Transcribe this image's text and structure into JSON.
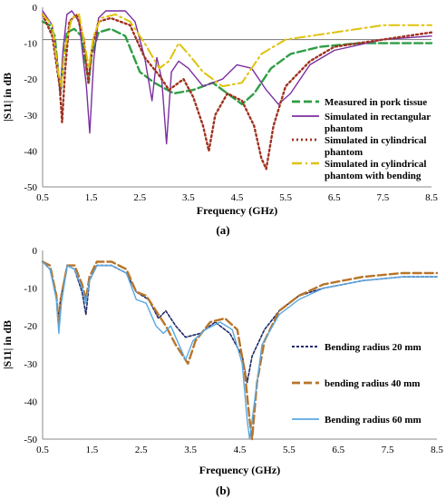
{
  "chart_data": [
    {
      "type": "line",
      "caption": "(a)",
      "xlabel": "Frequency (GHz)",
      "ylabel": "|S11| in dB",
      "xlim": [
        0.5,
        8.5
      ],
      "ylim": [
        -50,
        0
      ],
      "xticks": [
        "0.5",
        "1.5",
        "2.5",
        "3.5",
        "4.5",
        "5.5",
        "6.5",
        "7.5",
        "8.5"
      ],
      "yticks": [
        "0",
        "-10",
        "-20",
        "-30",
        "-40",
        "-50"
      ],
      "reference_line": -9,
      "legend_position": "right",
      "series": [
        {
          "name": "Measured in pork tissue",
          "color": "#2e9e44",
          "dash": "long",
          "points": [
            [
              0.5,
              -4
            ],
            [
              0.65,
              -5
            ],
            [
              0.75,
              -8
            ],
            [
              0.82,
              -18
            ],
            [
              0.87,
              -24
            ],
            [
              0.92,
              -16
            ],
            [
              1.0,
              -7
            ],
            [
              1.15,
              -6
            ],
            [
              1.3,
              -8
            ],
            [
              1.4,
              -17
            ],
            [
              1.45,
              -21
            ],
            [
              1.5,
              -14
            ],
            [
              1.65,
              -7
            ],
            [
              1.9,
              -6
            ],
            [
              2.2,
              -8
            ],
            [
              2.5,
              -18
            ],
            [
              2.8,
              -21
            ],
            [
              3.2,
              -24
            ],
            [
              3.6,
              -23
            ],
            [
              4.0,
              -21
            ],
            [
              4.3,
              -24
            ],
            [
              4.6,
              -27
            ],
            [
              4.85,
              -24
            ],
            [
              5.2,
              -17
            ],
            [
              5.6,
              -13
            ],
            [
              6.2,
              -11
            ],
            [
              7.0,
              -10
            ],
            [
              7.8,
              -10
            ],
            [
              8.5,
              -10
            ]
          ]
        },
        {
          "name": "Simulated in rectangular phantom",
          "color": "#7b2fa0",
          "dash": "solid",
          "points": [
            [
              0.5,
              -1
            ],
            [
              0.7,
              -5
            ],
            [
              0.8,
              -15
            ],
            [
              0.86,
              -24
            ],
            [
              0.92,
              -12
            ],
            [
              1.0,
              -2
            ],
            [
              1.1,
              -1
            ],
            [
              1.25,
              -4
            ],
            [
              1.4,
              -22
            ],
            [
              1.47,
              -35
            ],
            [
              1.55,
              -15
            ],
            [
              1.65,
              -3
            ],
            [
              1.8,
              -1
            ],
            [
              2.2,
              -1
            ],
            [
              2.4,
              -4
            ],
            [
              2.6,
              -14
            ],
            [
              2.75,
              -26
            ],
            [
              2.85,
              -14
            ],
            [
              2.95,
              -20
            ],
            [
              3.05,
              -38
            ],
            [
              3.15,
              -18
            ],
            [
              3.3,
              -15
            ],
            [
              3.5,
              -17
            ],
            [
              3.8,
              -22
            ],
            [
              4.2,
              -20
            ],
            [
              4.5,
              -16
            ],
            [
              4.8,
              -17
            ],
            [
              5.1,
              -23
            ],
            [
              5.35,
              -27
            ],
            [
              5.6,
              -24
            ],
            [
              6.0,
              -16
            ],
            [
              6.5,
              -12
            ],
            [
              7.5,
              -9
            ],
            [
              8.5,
              -8
            ]
          ]
        },
        {
          "name": "Simulated in cylindrical phantom",
          "color": "#a0311f",
          "dash": "dot",
          "points": [
            [
              0.5,
              -2
            ],
            [
              0.7,
              -8
            ],
            [
              0.85,
              -22
            ],
            [
              0.9,
              -32
            ],
            [
              0.96,
              -18
            ],
            [
              1.05,
              -4
            ],
            [
              1.2,
              -2
            ],
            [
              1.35,
              -9
            ],
            [
              1.44,
              -21
            ],
            [
              1.52,
              -11
            ],
            [
              1.65,
              -4
            ],
            [
              1.9,
              -3
            ],
            [
              2.3,
              -5
            ],
            [
              2.6,
              -14
            ],
            [
              2.9,
              -19
            ],
            [
              3.1,
              -23
            ],
            [
              3.4,
              -20
            ],
            [
              3.6,
              -25
            ],
            [
              3.8,
              -33
            ],
            [
              3.92,
              -40
            ],
            [
              4.05,
              -30
            ],
            [
              4.3,
              -24
            ],
            [
              4.6,
              -26
            ],
            [
              4.85,
              -33
            ],
            [
              5.0,
              -42
            ],
            [
              5.1,
              -45
            ],
            [
              5.25,
              -33
            ],
            [
              5.5,
              -22
            ],
            [
              6.0,
              -15
            ],
            [
              6.5,
              -11
            ],
            [
              7.0,
              -10
            ],
            [
              7.5,
              -9
            ],
            [
              8.5,
              -7
            ]
          ]
        },
        {
          "name": "Simulated in cylindrical phantom with bending",
          "color": "#e0c20a",
          "dash": "dashdot",
          "points": [
            [
              0.5,
              -2
            ],
            [
              0.7,
              -5
            ],
            [
              0.82,
              -18
            ],
            [
              0.88,
              -22
            ],
            [
              0.95,
              -12
            ],
            [
              1.1,
              -3
            ],
            [
              1.25,
              -2
            ],
            [
              1.4,
              -13
            ],
            [
              1.45,
              -17
            ],
            [
              1.55,
              -8
            ],
            [
              1.7,
              -3
            ],
            [
              2.0,
              -2
            ],
            [
              2.3,
              -4
            ],
            [
              2.6,
              -10
            ],
            [
              2.9,
              -17
            ],
            [
              3.1,
              -15
            ],
            [
              3.3,
              -10
            ],
            [
              3.5,
              -13
            ],
            [
              3.8,
              -18
            ],
            [
              4.2,
              -22
            ],
            [
              4.6,
              -21
            ],
            [
              5.0,
              -13
            ],
            [
              5.5,
              -9
            ],
            [
              6.0,
              -8
            ],
            [
              6.5,
              -7
            ],
            [
              7.0,
              -6
            ],
            [
              7.5,
              -5
            ],
            [
              8.5,
              -5
            ]
          ]
        }
      ]
    },
    {
      "type": "line",
      "caption": "(b)",
      "xlabel": "Frequency (GHz)",
      "ylabel": "|S11| in dB",
      "xlim": [
        0.5,
        8.5
      ],
      "ylim": [
        -50,
        0
      ],
      "xticks": [
        "0.5",
        "1.5",
        "2.5",
        "3.5",
        "4.5",
        "5.5",
        "6.5",
        "7.5",
        "8.5"
      ],
      "yticks": [
        "0",
        "-10",
        "-20",
        "-30",
        "-40",
        "-50"
      ],
      "legend_position": "right",
      "series": [
        {
          "name": "Bending radius 20 mm",
          "color": "#1f2a6b",
          "dash": "short",
          "points": [
            [
              0.5,
              -3
            ],
            [
              0.65,
              -5
            ],
            [
              0.78,
              -12
            ],
            [
              0.82,
              -19
            ],
            [
              0.86,
              -13
            ],
            [
              1.0,
              -4
            ],
            [
              1.15,
              -5
            ],
            [
              1.3,
              -11
            ],
            [
              1.38,
              -17
            ],
            [
              1.45,
              -8
            ],
            [
              1.6,
              -4
            ],
            [
              1.9,
              -4
            ],
            [
              2.2,
              -6
            ],
            [
              2.4,
              -11
            ],
            [
              2.65,
              -13
            ],
            [
              2.85,
              -18
            ],
            [
              3.0,
              -16
            ],
            [
              3.2,
              -20
            ],
            [
              3.4,
              -23
            ],
            [
              3.7,
              -22
            ],
            [
              4.0,
              -19
            ],
            [
              4.3,
              -22
            ],
            [
              4.55,
              -28
            ],
            [
              4.65,
              -35
            ],
            [
              4.75,
              -28
            ],
            [
              5.0,
              -21
            ],
            [
              5.3,
              -16
            ],
            [
              5.7,
              -12
            ],
            [
              6.2,
              -10
            ],
            [
              7.0,
              -8
            ],
            [
              7.8,
              -7
            ],
            [
              8.5,
              -7
            ]
          ]
        },
        {
          "name": "bending radius 40 mm",
          "color": "#b8742a",
          "dash": "long",
          "points": [
            [
              0.5,
              -3
            ],
            [
              0.65,
              -4
            ],
            [
              0.78,
              -12
            ],
            [
              0.83,
              -20
            ],
            [
              0.88,
              -12
            ],
            [
              1.0,
              -4
            ],
            [
              1.15,
              -4
            ],
            [
              1.3,
              -9
            ],
            [
              1.38,
              -13
            ],
            [
              1.45,
              -7
            ],
            [
              1.6,
              -3
            ],
            [
              1.9,
              -3
            ],
            [
              2.2,
              -5
            ],
            [
              2.4,
              -11
            ],
            [
              2.6,
              -12
            ],
            [
              2.8,
              -16
            ],
            [
              3.0,
              -20
            ],
            [
              3.2,
              -25
            ],
            [
              3.35,
              -28
            ],
            [
              3.45,
              -30
            ],
            [
              3.6,
              -24
            ],
            [
              3.9,
              -19
            ],
            [
              4.2,
              -18
            ],
            [
              4.45,
              -21
            ],
            [
              4.6,
              -32
            ],
            [
              4.7,
              -45
            ],
            [
              4.75,
              -50
            ],
            [
              4.85,
              -35
            ],
            [
              5.0,
              -24
            ],
            [
              5.3,
              -16
            ],
            [
              5.7,
              -12
            ],
            [
              6.2,
              -9
            ],
            [
              7.0,
              -7
            ],
            [
              7.8,
              -6
            ],
            [
              8.5,
              -6
            ]
          ]
        },
        {
          "name": "Bending radius 60 mm",
          "color": "#5aa8e0",
          "dash": "solid",
          "points": [
            [
              0.5,
              -3
            ],
            [
              0.65,
              -5
            ],
            [
              0.78,
              -13
            ],
            [
              0.83,
              -22
            ],
            [
              0.88,
              -14
            ],
            [
              1.0,
              -4
            ],
            [
              1.15,
              -5
            ],
            [
              1.3,
              -10
            ],
            [
              1.38,
              -14
            ],
            [
              1.45,
              -8
            ],
            [
              1.6,
              -4
            ],
            [
              1.9,
              -4
            ],
            [
              2.2,
              -6
            ],
            [
              2.4,
              -13
            ],
            [
              2.6,
              -14
            ],
            [
              2.8,
              -20
            ],
            [
              2.95,
              -22
            ],
            [
              3.1,
              -20
            ],
            [
              3.3,
              -26
            ],
            [
              3.4,
              -29
            ],
            [
              3.55,
              -24
            ],
            [
              3.8,
              -21
            ],
            [
              4.1,
              -19
            ],
            [
              4.35,
              -21
            ],
            [
              4.55,
              -30
            ],
            [
              4.65,
              -45
            ],
            [
              4.7,
              -50
            ],
            [
              4.8,
              -40
            ],
            [
              4.95,
              -25
            ],
            [
              5.3,
              -17
            ],
            [
              5.7,
              -13
            ],
            [
              6.2,
              -10
            ],
            [
              7.0,
              -8
            ],
            [
              7.8,
              -7
            ],
            [
              8.5,
              -7
            ]
          ]
        }
      ]
    }
  ]
}
